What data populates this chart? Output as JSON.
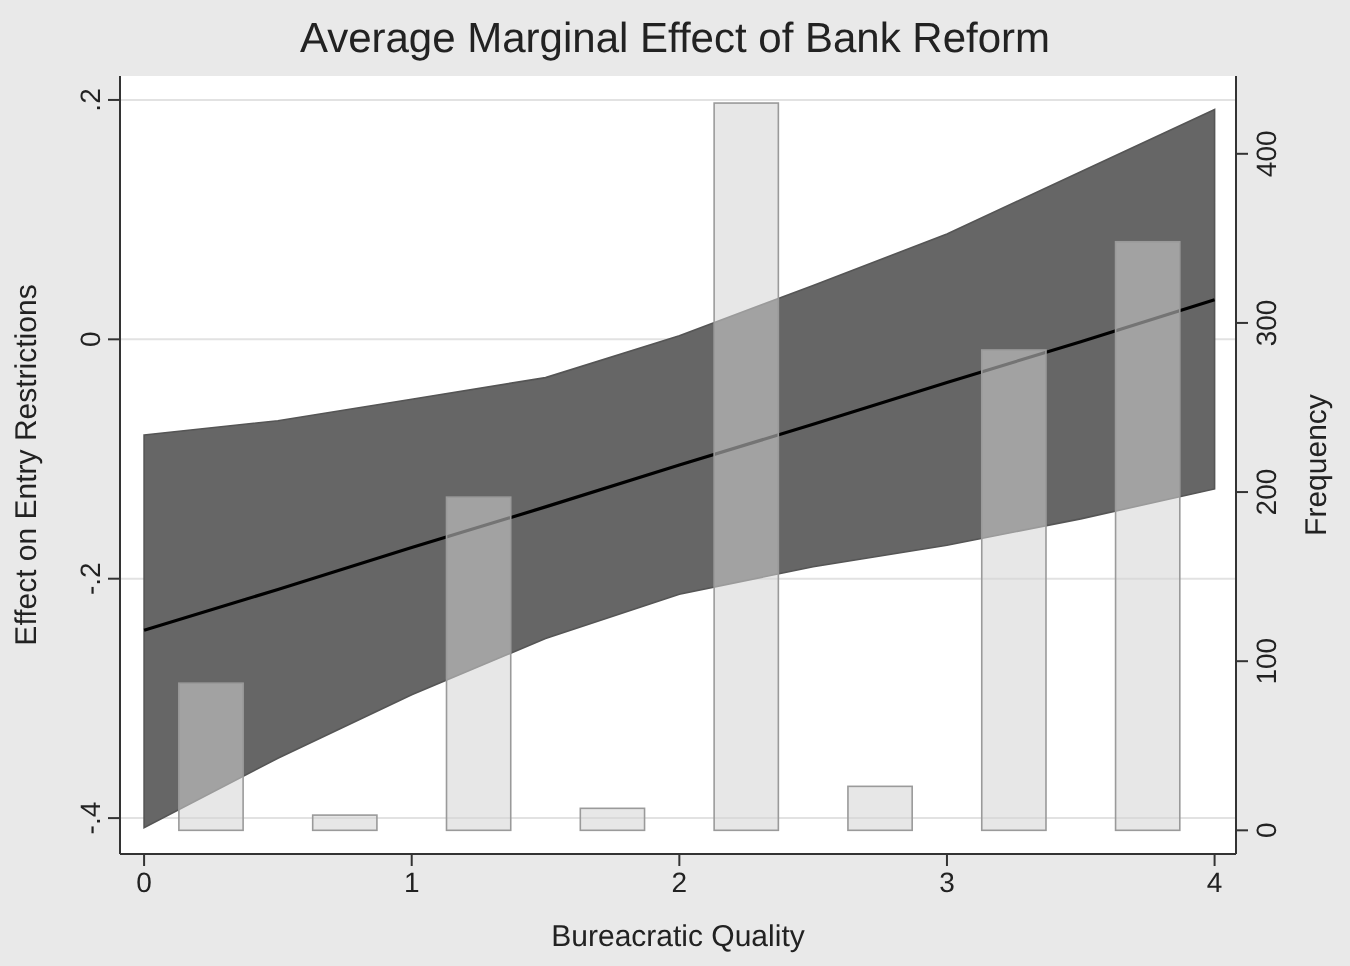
{
  "chart_data": {
    "type": "line",
    "title": "Average Marginal Effect of Bank Reform",
    "xlabel": "Bureacratic Quality",
    "ylabel": "Effect on Entry Restrictions",
    "y2label": "Frequency",
    "xlim": [
      -0.09,
      4.08
    ],
    "xticks": [
      0,
      1,
      2,
      3,
      4
    ],
    "ylim": [
      -0.43,
      0.22
    ],
    "yticks": [
      {
        "value": -0.4,
        "label": "-.4"
      },
      {
        "value": -0.2,
        "label": "-.2"
      },
      0,
      {
        "value": 0.2,
        "label": ".2"
      }
    ],
    "y2lim": [
      -14,
      446
    ],
    "y2ticks": [
      0,
      100,
      200,
      300,
      400
    ],
    "grid": "y",
    "series": [
      {
        "type": "bar",
        "axis": "y2",
        "color": "#d4d4d4",
        "x": [
          0.25,
          0.75,
          1.25,
          1.75,
          2.25,
          2.75,
          3.25,
          3.75
        ],
        "values": [
          87,
          9,
          197,
          13,
          430,
          26,
          284,
          348
        ]
      },
      {
        "color": "#000000",
        "x": [
          0,
          0.5,
          1,
          1.5,
          2,
          2.5,
          3,
          3.5,
          4
        ],
        "values": [
          -0.243,
          -0.209,
          -0.174,
          -0.14,
          -0.105,
          -0.071,
          -0.036,
          -0.002,
          0.033
        ],
        "lower": [
          -0.408,
          -0.35,
          -0.297,
          -0.25,
          -0.213,
          -0.19,
          -0.172,
          -0.15,
          -0.125
        ],
        "upper": [
          -0.08,
          -0.068,
          -0.05,
          -0.032,
          0.003,
          0.045,
          0.088,
          0.14,
          0.192
        ]
      }
    ]
  }
}
